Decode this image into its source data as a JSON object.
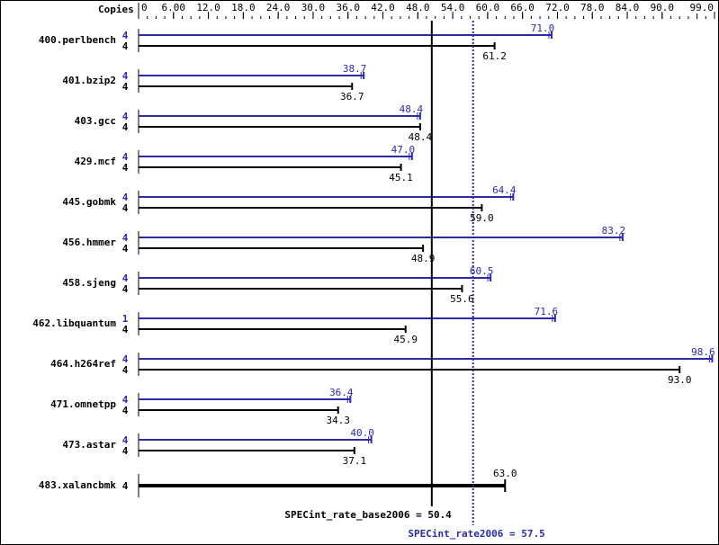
{
  "chart_data": {
    "type": "bar",
    "orientation": "horizontal",
    "copies_header": "Copies",
    "xlim": [
      0,
      99.0
    ],
    "x_ticks": [
      "0",
      "6.00",
      "12.0",
      "18.0",
      "24.0",
      "30.0",
      "36.0",
      "42.0",
      "48.0",
      "54.0",
      "60.0",
      "66.0",
      "72.0",
      "78.0",
      "84.0",
      "90.0",
      "99.0"
    ],
    "categories": [
      "400.perlbench",
      "401.bzip2",
      "403.gcc",
      "429.mcf",
      "445.gobmk",
      "456.hmmer",
      "458.sjeng",
      "462.libquantum",
      "464.h264ref",
      "471.omnetpp",
      "473.astar",
      "483.xalancbmk"
    ],
    "series": [
      {
        "name": "SPECint_rate2006",
        "color": "#2b2ba8",
        "copies": [
          "4",
          "4",
          "4",
          "4",
          "4",
          "4",
          "4",
          "1",
          "4",
          "4",
          "4",
          null
        ],
        "values": [
          71.0,
          38.7,
          48.4,
          47.0,
          64.4,
          83.2,
          60.5,
          71.6,
          98.6,
          36.4,
          40.0,
          null
        ],
        "labels": [
          "71.0",
          "38.7",
          "48.4",
          "47.0",
          "64.4",
          "83.2",
          "60.5",
          "71.6",
          "98.6",
          "36.4",
          "40.0",
          null
        ]
      },
      {
        "name": "SPECint_rate_base2006",
        "color": "#000000",
        "copies": [
          "4",
          "4",
          "4",
          "4",
          "4",
          "4",
          "4",
          "4",
          "4",
          "4",
          "4",
          "4"
        ],
        "values": [
          61.2,
          36.7,
          48.4,
          45.1,
          59.0,
          48.9,
          55.6,
          45.9,
          93.0,
          34.3,
          37.1,
          63.0
        ],
        "labels": [
          "61.2",
          "36.7",
          "48.4",
          "45.1",
          "59.0",
          "48.9",
          "55.6",
          "45.9",
          "93.0",
          "34.3",
          "37.1",
          "63.0"
        ]
      }
    ],
    "reference_lines": [
      {
        "label": "SPECint_rate_base2006 = 50.4",
        "value": 50.4,
        "color": "#000000",
        "style": "solid"
      },
      {
        "label": "SPECint_rate2006 = 57.5",
        "value": 57.5,
        "color": "#2b2ba8",
        "style": "dotted"
      }
    ]
  }
}
